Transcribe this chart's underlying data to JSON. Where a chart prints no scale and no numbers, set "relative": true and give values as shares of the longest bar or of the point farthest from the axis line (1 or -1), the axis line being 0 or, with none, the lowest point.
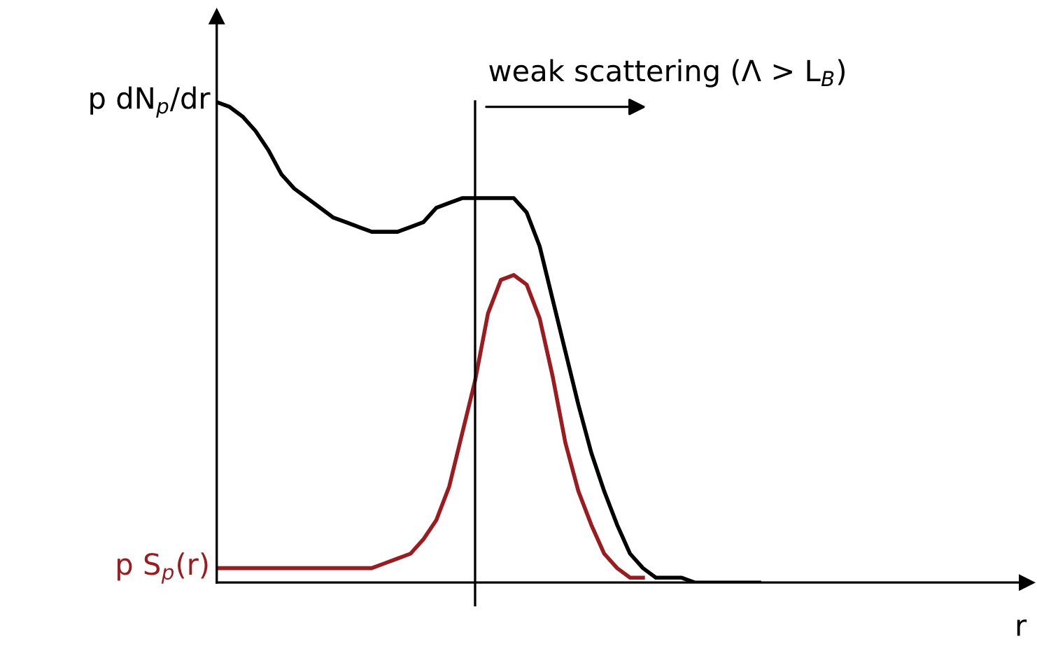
{
  "chart_data": {
    "type": "line",
    "relative": true,
    "categories": [
      null,
      null,
      null,
      null,
      null,
      null,
      null,
      null,
      null,
      null,
      null,
      null,
      null,
      null,
      null,
      null,
      null,
      null,
      null,
      null,
      null,
      null,
      null,
      null,
      null,
      null,
      null,
      null,
      null,
      null,
      null,
      null,
      null,
      null,
      null,
      null,
      null,
      null,
      null,
      null,
      null,
      null,
      null
    ],
    "series": [
      {
        "name": "p dN$_{p}$/dr",
        "color": "#000000",
        "values": [
          1.0,
          0.99,
          0.97,
          0.94,
          0.9,
          0.85,
          0.82,
          0.8,
          0.78,
          0.76,
          0.75,
          0.74,
          0.73,
          0.73,
          0.73,
          0.74,
          0.75,
          0.78,
          0.79,
          0.8,
          0.8,
          0.8,
          0.8,
          0.8,
          0.77,
          0.7,
          0.59,
          0.48,
          0.37,
          0.27,
          0.19,
          0.12,
          0.06,
          0.03,
          0.01,
          0.01,
          0.01,
          0,
          0,
          0,
          0,
          0,
          0
        ]
      },
      {
        "name": "p S$_{p}$(r)",
        "color": "#9b1b1e",
        "values": [
          0.03,
          0.03,
          0.03,
          0.03,
          0.03,
          0.03,
          0.03,
          0.03,
          0.03,
          0.03,
          0.03,
          0.03,
          0.03,
          0.04,
          0.05,
          0.06,
          0.09,
          0.13,
          0.2,
          0.31,
          0.42,
          0.56,
          0.63,
          0.64,
          0.62,
          0.55,
          0.43,
          0.29,
          0.19,
          0.12,
          0.06,
          0.03,
          0.01,
          0.01,
          null,
          null,
          null,
          null,
          null,
          null,
          null,
          null,
          null
        ]
      }
    ],
    "annotations": [
      "weak scattering (Λ > L$_{B}$)",
      "r"
    ],
    "legend": false,
    "marker": "none",
    "line_style": "solid",
    "tick_labels": false
  }
}
